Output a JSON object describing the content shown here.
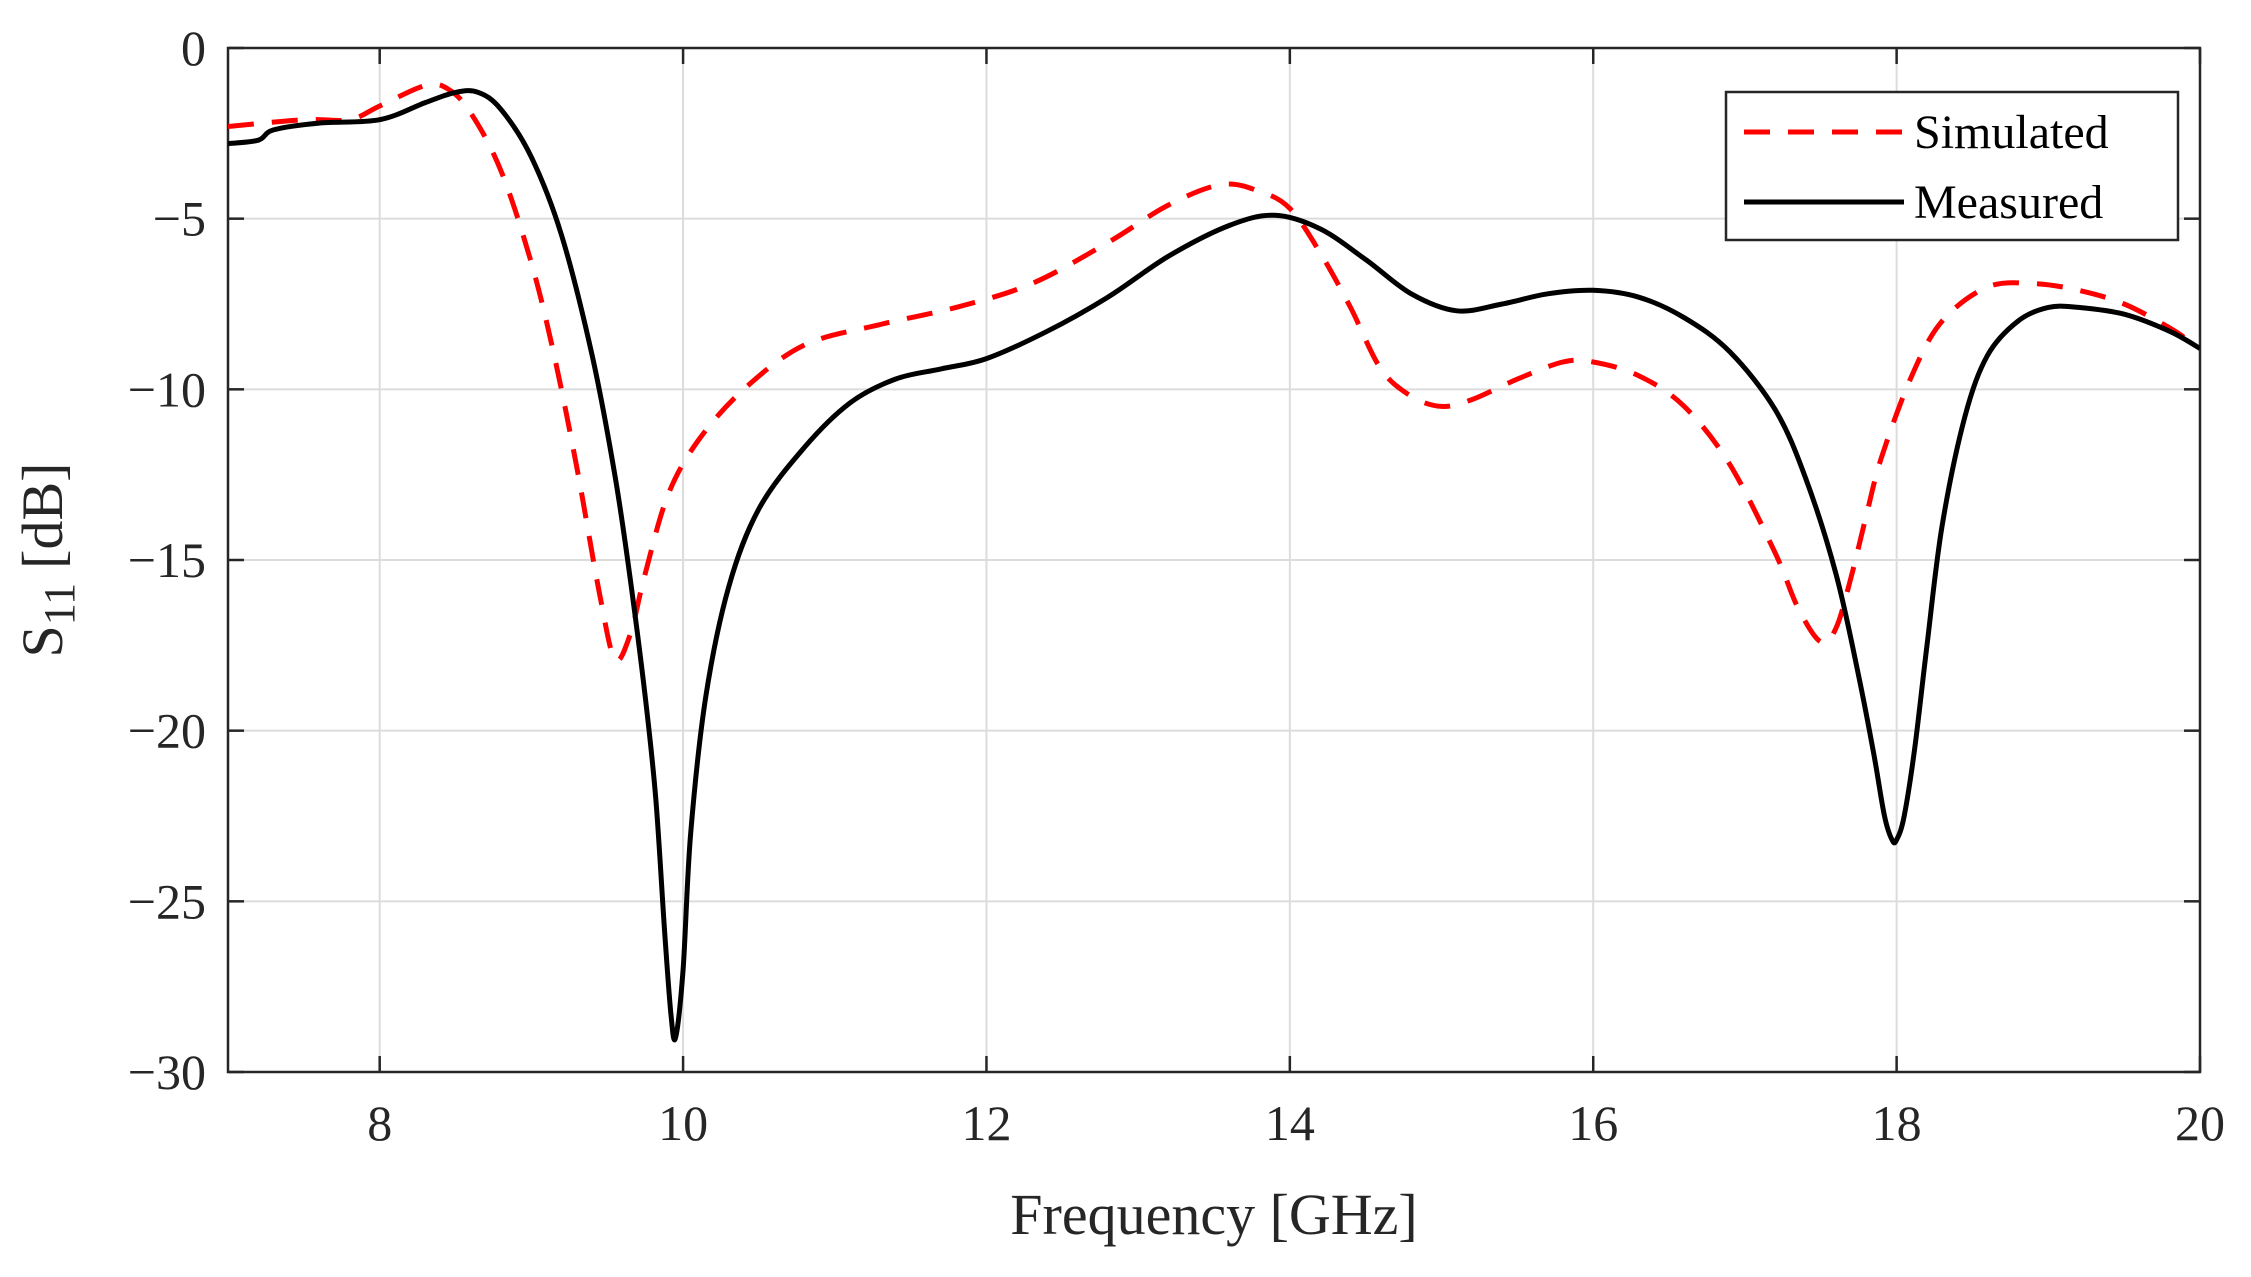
{
  "chart_data": {
    "type": "line",
    "title": "",
    "xlabel": "Frequency [GHz]",
    "ylabel": {
      "main": "S",
      "sub": "11",
      "unit": "[dB]"
    },
    "xlim": [
      7,
      20
    ],
    "ylim": [
      -30,
      0
    ],
    "xticks": [
      8,
      10,
      12,
      14,
      16,
      18,
      20
    ],
    "yticks": [
      0,
      -5,
      -10,
      -15,
      -20,
      -25,
      -30
    ],
    "ytick_labels": [
      "0",
      "−5",
      "−10",
      "−15",
      "−20",
      "−25",
      "−30"
    ],
    "grid": true,
    "legend_position": "top-right",
    "series": [
      {
        "name": "Simulated",
        "style": "dashed",
        "color": "#ff0000",
        "x": [
          7.0,
          7.5,
          7.8,
          8.0,
          8.3,
          8.45,
          8.6,
          8.8,
          9.0,
          9.15,
          9.3,
          9.45,
          9.55,
          9.65,
          9.75,
          9.9,
          10.1,
          10.4,
          10.8,
          11.3,
          11.8,
          12.3,
          12.8,
          13.2,
          13.55,
          13.8,
          14.0,
          14.2,
          14.4,
          14.6,
          14.8,
          15.0,
          15.2,
          15.5,
          15.8,
          16.0,
          16.3,
          16.6,
          16.9,
          17.2,
          17.35,
          17.5,
          17.6,
          17.7,
          17.8,
          17.9,
          18.1,
          18.3,
          18.6,
          18.9,
          19.2,
          19.5,
          19.8,
          20.0
        ],
        "y": [
          -2.3,
          -2.1,
          -2.1,
          -1.7,
          -1.1,
          -1.2,
          -1.9,
          -3.6,
          -6.3,
          -9.0,
          -12.3,
          -16.0,
          -17.9,
          -17.2,
          -15.4,
          -13.1,
          -11.5,
          -10.0,
          -8.7,
          -8.1,
          -7.6,
          -6.9,
          -5.7,
          -4.6,
          -4.0,
          -4.2,
          -4.7,
          -6.0,
          -7.6,
          -9.4,
          -10.2,
          -10.5,
          -10.3,
          -9.7,
          -9.2,
          -9.2,
          -9.6,
          -10.5,
          -12.2,
          -14.8,
          -16.4,
          -17.4,
          -17.0,
          -15.5,
          -13.7,
          -12.0,
          -9.6,
          -8.0,
          -7.0,
          -6.9,
          -7.1,
          -7.5,
          -8.2,
          -8.8
        ]
      },
      {
        "name": "Measured",
        "style": "solid",
        "color": "#000000",
        "x": [
          7.0,
          7.2,
          7.3,
          7.6,
          8.0,
          8.3,
          8.5,
          8.65,
          8.8,
          9.0,
          9.2,
          9.4,
          9.55,
          9.65,
          9.75,
          9.82,
          9.88,
          9.92,
          9.95,
          10.0,
          10.05,
          10.15,
          10.3,
          10.5,
          10.8,
          11.1,
          11.4,
          11.7,
          12.0,
          12.4,
          12.8,
          13.2,
          13.6,
          13.9,
          14.2,
          14.5,
          14.8,
          15.1,
          15.4,
          15.7,
          16.0,
          16.3,
          16.6,
          16.9,
          17.2,
          17.4,
          17.6,
          17.75,
          17.85,
          17.92,
          17.97,
          18.0,
          18.05,
          18.12,
          18.2,
          18.3,
          18.45,
          18.6,
          18.8,
          19.0,
          19.2,
          19.5,
          19.8,
          20.0
        ],
        "y": [
          -2.8,
          -2.7,
          -2.4,
          -2.2,
          -2.1,
          -1.6,
          -1.3,
          -1.3,
          -1.8,
          -3.2,
          -5.5,
          -9.0,
          -12.5,
          -15.5,
          -19.0,
          -22.0,
          -26.0,
          -28.3,
          -29.0,
          -27.0,
          -23.0,
          -19.0,
          -15.8,
          -13.5,
          -11.7,
          -10.4,
          -9.7,
          -9.4,
          -9.1,
          -8.3,
          -7.3,
          -6.1,
          -5.2,
          -4.9,
          -5.3,
          -6.2,
          -7.2,
          -7.7,
          -7.5,
          -7.2,
          -7.1,
          -7.3,
          -7.9,
          -8.9,
          -10.6,
          -12.6,
          -15.4,
          -18.4,
          -20.7,
          -22.5,
          -23.2,
          -23.2,
          -22.5,
          -20.5,
          -17.5,
          -14.0,
          -10.8,
          -9.0,
          -8.0,
          -7.6,
          -7.6,
          -7.8,
          -8.3,
          -8.8
        ]
      }
    ]
  }
}
